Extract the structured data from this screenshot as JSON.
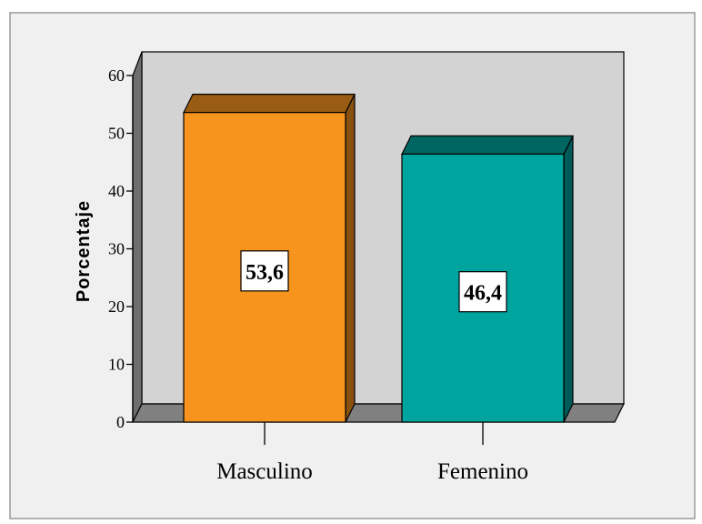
{
  "chart_data": {
    "type": "bar",
    "categories": [
      "Masculino",
      "Femenino"
    ],
    "values": [
      53.6,
      46.4
    ],
    "value_labels": [
      "53,6",
      "46,4"
    ],
    "colors": [
      "#F7941D",
      "#00A49E"
    ],
    "ylabel": "Porcentaje",
    "xlabel": "",
    "ylim": [
      0,
      60
    ],
    "yticks": [
      "0",
      "10",
      "20",
      "30",
      "40",
      "50",
      "60"
    ],
    "style": "3d",
    "grid": false
  },
  "colors": {
    "page_background": "#F0F0F0",
    "back_wall": "#D3D3D3",
    "floor": "#808080"
  }
}
